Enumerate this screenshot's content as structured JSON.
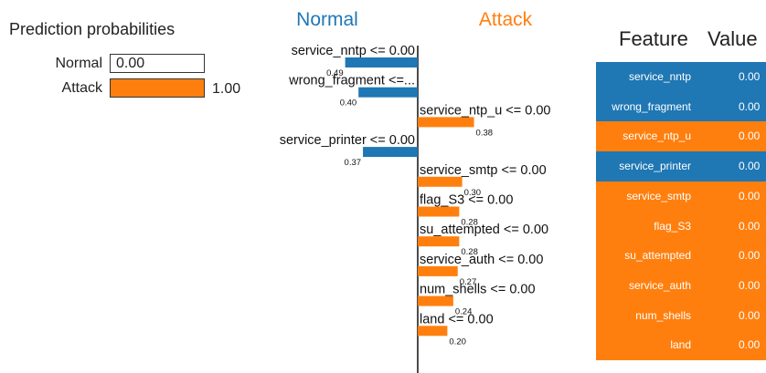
{
  "colors": {
    "normal": "#1f77b4",
    "attack": "#ff7f0e",
    "text": "#222222"
  },
  "prediction_probabilities": {
    "title": "Prediction probabilities",
    "rows": [
      {
        "label": "Normal",
        "value": 0.0,
        "display": "0.00",
        "color": "#1f77b4"
      },
      {
        "label": "Attack",
        "value": 1.0,
        "display": "1.00",
        "color": "#ff7f0e"
      }
    ]
  },
  "chart_data": {
    "type": "bar",
    "orientation": "horizontal-diverging",
    "class_labels": {
      "left": "Normal",
      "right": "Attack"
    },
    "categories": [
      "service_nntp <= 0.00",
      "wrong_fragment <=...",
      "service_ntp_u <= 0.00",
      "service_printer <= 0.00",
      "service_smtp <= 0.00",
      "flag_S3 <= 0.00",
      "su_attempted <= 0.00",
      "service_auth <= 0.00",
      "num_shells <= 0.00",
      "land <= 0.00"
    ],
    "values": [
      -0.49,
      -0.4,
      0.38,
      -0.37,
      0.3,
      0.28,
      0.28,
      0.27,
      0.24,
      0.2
    ],
    "value_labels": [
      "0.49",
      "0.40",
      "0.38",
      "0.37",
      "0.30",
      "0.28",
      "0.28",
      "0.27",
      "0.24",
      "0.20"
    ]
  },
  "feature_table": {
    "headers": [
      "Feature",
      "Value"
    ],
    "rows": [
      {
        "feature": "service_nntp",
        "value": "0.00",
        "class": "normal"
      },
      {
        "feature": "wrong_fragment",
        "value": "0.00",
        "class": "normal"
      },
      {
        "feature": "service_ntp_u",
        "value": "0.00",
        "class": "attack"
      },
      {
        "feature": "service_printer",
        "value": "0.00",
        "class": "normal"
      },
      {
        "feature": "service_smtp",
        "value": "0.00",
        "class": "attack"
      },
      {
        "feature": "flag_S3",
        "value": "0.00",
        "class": "attack"
      },
      {
        "feature": "su_attempted",
        "value": "0.00",
        "class": "attack"
      },
      {
        "feature": "service_auth",
        "value": "0.00",
        "class": "attack"
      },
      {
        "feature": "num_shells",
        "value": "0.00",
        "class": "attack"
      },
      {
        "feature": "land",
        "value": "0.00",
        "class": "attack"
      }
    ]
  }
}
